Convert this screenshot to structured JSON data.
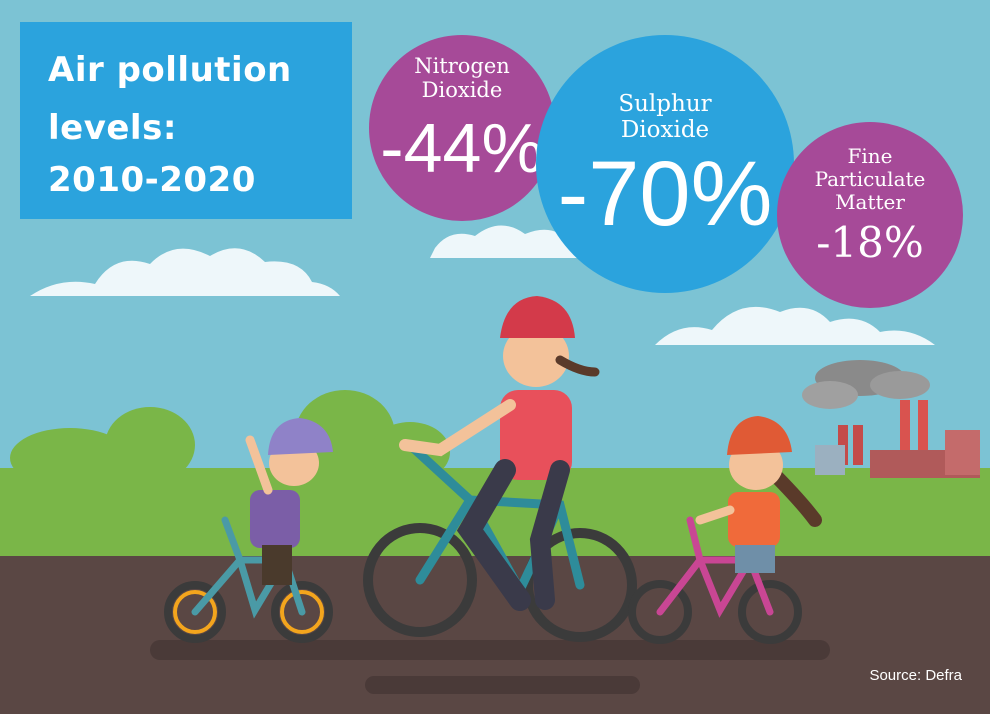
{
  "title_lines": [
    "Air pollution",
    "levels:",
    "2010-2020"
  ],
  "stats": [
    {
      "label_lines": [
        "Nitrogen",
        "Dioxide"
      ],
      "value": "-44%"
    },
    {
      "label_lines": [
        "Sulphur",
        "Dioxide"
      ],
      "value": "-70%"
    },
    {
      "label_lines": [
        "Fine",
        "Particulate",
        "Matter"
      ],
      "value": "-18%"
    }
  ],
  "source": "Source: Defra",
  "colors": {
    "sky": "#7cc3d4",
    "grass": "#7ab648",
    "road": "#5a4744",
    "title_box": "#2ba3dd",
    "bubble_purple": "#a64a98",
    "bubble_blue": "#2ba3dd"
  }
}
